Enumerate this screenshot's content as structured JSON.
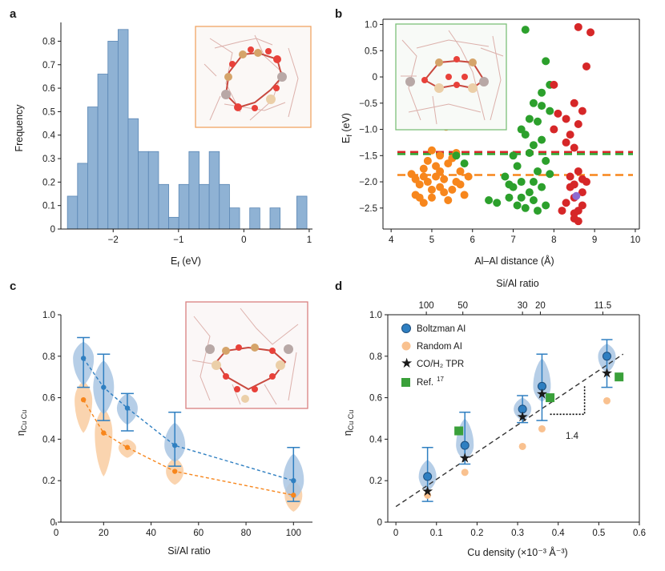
{
  "chart_data": [
    {
      "panel": "a",
      "type": "histogram",
      "xlabel": "E_f (eV)",
      "ylabel": "Frequency",
      "xlim": [
        -2.8,
        1.05
      ],
      "ylim": [
        0,
        0.88
      ],
      "xticks": [
        -2,
        -1,
        0,
        1
      ],
      "xtick_labels": [
        "−2",
        "−1",
        "0",
        "1"
      ],
      "yticks": [
        0,
        0.1,
        0.2,
        0.3,
        0.4,
        0.5,
        0.6,
        0.7,
        0.8
      ],
      "ytick_labels": [
        "0",
        "0.1",
        "0.2",
        "0.3",
        "0.4",
        "0.5",
        "0.6",
        "0.7",
        "0.8"
      ],
      "bin_width": 0.155,
      "bins": [
        {
          "x0": -2.7,
          "value": 0.14
        },
        {
          "x0": -2.545,
          "value": 0.28
        },
        {
          "x0": -2.39,
          "value": 0.52
        },
        {
          "x0": -2.235,
          "value": 0.66
        },
        {
          "x0": -2.08,
          "value": 0.8
        },
        {
          "x0": -1.925,
          "value": 0.85
        },
        {
          "x0": -1.77,
          "value": 0.47
        },
        {
          "x0": -1.615,
          "value": 0.33
        },
        {
          "x0": -1.46,
          "value": 0.33
        },
        {
          "x0": -1.305,
          "value": 0.19
        },
        {
          "x0": -1.15,
          "value": 0.05
        },
        {
          "x0": -0.995,
          "value": 0.19
        },
        {
          "x0": -0.84,
          "value": 0.33
        },
        {
          "x0": -0.685,
          "value": 0.19
        },
        {
          "x0": -0.53,
          "value": 0.33
        },
        {
          "x0": -0.375,
          "value": 0.19
        },
        {
          "x0": -0.22,
          "value": 0.09
        },
        {
          "x0": 0.09,
          "value": 0.09
        },
        {
          "x0": 0.4,
          "value": 0.09
        },
        {
          "x0": 0.81,
          "value": 0.14
        }
      ],
      "bar_color": "#8fb2d4"
    },
    {
      "panel": "b",
      "type": "scatter",
      "xlabel": "Al–Al distance (Å)",
      "ylabel": "E_f (eV)",
      "xlim": [
        3.8,
        10.1
      ],
      "ylim": [
        -2.9,
        1.1
      ],
      "xticks": [
        4,
        5,
        6,
        7,
        8,
        9,
        10
      ],
      "xtick_labels": [
        "4",
        "5",
        "6",
        "7",
        "8",
        "9",
        "10"
      ],
      "yticks": [
        -2.5,
        -2.0,
        -1.5,
        -1.0,
        -0.5,
        0,
        0.5,
        1.0
      ],
      "ytick_labels": [
        "−2.5",
        "−2.0",
        "−1.5",
        "−1.0",
        "−0.5",
        "0",
        "0.5",
        "1.0"
      ],
      "series": [
        {
          "name": "orange",
          "color": "#f7861c",
          "mean_line": -1.87,
          "points": [
            [
              4.5,
              -1.85
            ],
            [
              4.6,
              -1.95
            ],
            [
              4.7,
              -2.05
            ],
            [
              4.8,
              -1.75
            ],
            [
              4.9,
              -1.6
            ],
            [
              5.0,
              -1.4
            ],
            [
              5.0,
              -2.3
            ],
            [
              5.1,
              -1.9
            ],
            [
              5.2,
              -2.1
            ],
            [
              5.2,
              -1.5
            ],
            [
              5.3,
              -2.2
            ],
            [
              5.4,
              -1.65
            ],
            [
              5.5,
              -1.55
            ],
            [
              5.6,
              -2.0
            ],
            [
              5.7,
              -1.8
            ],
            [
              5.8,
              -2.25
            ],
            [
              4.6,
              -2.25
            ],
            [
              4.8,
              -2.4
            ],
            [
              5.0,
              -2.15
            ],
            [
              5.3,
              -1.95
            ],
            [
              5.6,
              -1.45
            ],
            [
              5.4,
              -2.35
            ],
            [
              5.1,
              -1.7
            ],
            [
              4.9,
              -2.0
            ],
            [
              4.7,
              -2.3
            ],
            [
              5.5,
              -2.15
            ],
            [
              5.7,
              -2.05
            ],
            [
              5.2,
              -1.8
            ],
            [
              4.8,
              -1.9
            ],
            [
              5.9,
              -1.9
            ],
            [
              5.35,
              -0.95
            ]
          ]
        },
        {
          "name": "green",
          "color": "#2ca02c",
          "mean_line": -1.47,
          "points": [
            [
              7.3,
              0.9
            ],
            [
              7.8,
              0.3
            ],
            [
              7.9,
              -0.15
            ],
            [
              7.5,
              -0.5
            ],
            [
              7.7,
              -0.55
            ],
            [
              7.9,
              -0.65
            ],
            [
              7.4,
              -0.8
            ],
            [
              7.6,
              -0.85
            ],
            [
              7.2,
              -1.0
            ],
            [
              7.3,
              -1.1
            ],
            [
              7.7,
              -1.2
            ],
            [
              7.5,
              -1.3
            ],
            [
              7.0,
              -1.5
            ],
            [
              7.8,
              -1.6
            ],
            [
              7.1,
              -1.7
            ],
            [
              7.6,
              -1.8
            ],
            [
              7.9,
              -1.85
            ],
            [
              6.8,
              -1.9
            ],
            [
              7.2,
              -2.0
            ],
            [
              7.0,
              -2.1
            ],
            [
              7.4,
              -2.2
            ],
            [
              6.9,
              -2.3
            ],
            [
              7.5,
              -2.35
            ],
            [
              7.1,
              -2.45
            ],
            [
              7.3,
              -2.5
            ],
            [
              7.6,
              -2.55
            ],
            [
              7.8,
              -2.45
            ],
            [
              6.6,
              -2.4
            ],
            [
              7.2,
              -2.3
            ],
            [
              7.7,
              -2.1
            ],
            [
              6.4,
              -2.35
            ],
            [
              7.4,
              -1.45
            ],
            [
              6.9,
              -2.05
            ],
            [
              7.5,
              -2.0
            ],
            [
              5.8,
              -1.65
            ],
            [
              5.6,
              -1.5
            ],
            [
              7.7,
              -0.3
            ]
          ]
        },
        {
          "name": "red",
          "color": "#d62728",
          "mean_line": -1.43,
          "points": [
            [
              8.6,
              0.95
            ],
            [
              8.9,
              0.85
            ],
            [
              8.8,
              0.2
            ],
            [
              8.0,
              -0.15
            ],
            [
              8.5,
              -0.5
            ],
            [
              8.1,
              -0.7
            ],
            [
              8.3,
              -0.8
            ],
            [
              8.6,
              -0.9
            ],
            [
              8.0,
              -1.0
            ],
            [
              8.4,
              -1.1
            ],
            [
              8.7,
              -0.65
            ],
            [
              8.3,
              -1.25
            ],
            [
              8.5,
              -1.35
            ],
            [
              8.6,
              -1.8
            ],
            [
              8.7,
              -1.95
            ],
            [
              8.4,
              -2.1
            ],
            [
              8.5,
              -2.3
            ],
            [
              8.3,
              -2.4
            ],
            [
              8.6,
              -2.55
            ],
            [
              8.5,
              -2.6
            ],
            [
              8.7,
              -2.2
            ],
            [
              8.8,
              -2.0
            ],
            [
              8.4,
              -1.9
            ],
            [
              8.5,
              -2.7
            ],
            [
              8.2,
              -2.55
            ],
            [
              8.6,
              -2.75
            ],
            [
              8.5,
              -2.05
            ],
            [
              8.7,
              -2.45
            ]
          ]
        },
        {
          "name": "purple",
          "color": "#8e6bd0",
          "mean_line": null,
          "points": [
            [
              8.55,
              -2.27
            ]
          ]
        }
      ]
    },
    {
      "panel": "c",
      "type": "violin",
      "xlabel": "Si/Al ratio",
      "ylabel": "η_Cu Cu",
      "xlim": [
        2,
        108
      ],
      "ylim": [
        0,
        1.0
      ],
      "xticks": [
        0,
        20,
        40,
        60,
        80,
        100
      ],
      "xtick_labels": [
        "0",
        "20",
        "40",
        "60",
        "80",
        "100"
      ],
      "yticks": [
        0,
        0.2,
        0.4,
        0.6,
        0.8,
        1.0
      ],
      "ytick_labels": [
        "0",
        "0.2",
        "0.4",
        "0.6",
        "0.8",
        "1.0"
      ],
      "series": [
        {
          "name": "Boltzman Al",
          "color": "#2f7fc1",
          "x": [
            11.5,
            20,
            30,
            50,
            100
          ],
          "y": [
            0.79,
            0.65,
            0.55,
            0.37,
            0.2
          ],
          "err_low": [
            0.65,
            0.49,
            0.44,
            0.27,
            0.1
          ],
          "err_high": [
            0.89,
            0.81,
            0.62,
            0.53,
            0.36
          ]
        },
        {
          "name": "Random Al",
          "color": "#f7861c",
          "x": [
            11.5,
            20,
            30,
            50,
            100
          ],
          "y": [
            0.59,
            0.43,
            0.36,
            0.245,
            0.13
          ]
        }
      ]
    },
    {
      "panel": "d",
      "type": "scatter",
      "xlabel": "Cu density (×10⁻³ Å⁻³)",
      "ylabel": "η_Cu Cu",
      "top_xlabel": "Si/Al ratio",
      "top_xticks": [
        0.075,
        0.165,
        0.312,
        0.356,
        0.51
      ],
      "top_xtick_labels": [
        "100",
        "50",
        "30",
        "20",
        "11.5"
      ],
      "xlim": [
        -0.02,
        0.6
      ],
      "ylim": [
        0,
        1.0
      ],
      "xticks": [
        0,
        0.1,
        0.2,
        0.3,
        0.4,
        0.5,
        0.6
      ],
      "xtick_labels": [
        "0",
        "0.1",
        "0.2",
        "0.3",
        "0.4",
        "0.5",
        "0.6"
      ],
      "yticks": [
        0,
        0.2,
        0.4,
        0.6,
        0.8,
        1.0
      ],
      "ytick_labels": [
        "0",
        "0.2",
        "0.4",
        "0.6",
        "0.8",
        "1.0"
      ],
      "fit_line": {
        "x": [
          0,
          0.56
        ],
        "y": [
          0.075,
          0.81
        ]
      },
      "slope_annotation": "1.4",
      "series": [
        {
          "name": "Boltzman AI",
          "color": "#2f7fc1",
          "x": [
            0.078,
            0.17,
            0.312,
            0.36,
            0.52
          ],
          "y": [
            0.22,
            0.37,
            0.545,
            0.655,
            0.8
          ],
          "err_low": [
            0.1,
            0.28,
            0.48,
            0.49,
            0.65
          ],
          "err_high": [
            0.36,
            0.53,
            0.61,
            0.81,
            0.88
          ]
        },
        {
          "name": "Random AI",
          "color": "#f9c18f",
          "x": [
            0.078,
            0.17,
            0.312,
            0.36,
            0.52
          ],
          "y": [
            0.13,
            0.24,
            0.365,
            0.45,
            0.585
          ]
        },
        {
          "name": "CO/H₂ TPR",
          "color": "#000000",
          "x": [
            0.078,
            0.17,
            0.312,
            0.36,
            0.52
          ],
          "y": [
            0.15,
            0.31,
            0.51,
            0.62,
            0.72
          ]
        },
        {
          "name": "Ref.",
          "color": "#3aa03a",
          "x": [
            0.155,
            0.38,
            0.55
          ],
          "y": [
            0.44,
            0.6,
            0.7
          ]
        }
      ],
      "legend": [
        "Boltzman AI",
        "Random AI",
        "CO/H₂ TPR",
        "Ref."
      ],
      "ref_superscript": "17"
    }
  ],
  "labels": {
    "panel_a": "a",
    "panel_b": "b",
    "panel_c": "c",
    "panel_d": "d",
    "a_xlabel_main": "E",
    "a_xlabel_sub": "f",
    "a_xlabel_rest": " (eV)",
    "a_ylabel": "Frequency",
    "b_xlabel": "Al–Al distance (Å)",
    "b_ylabel_main": "E",
    "b_ylabel_sub": "f",
    "b_ylabel_rest": " (eV)",
    "c_xlabel": "Si/Al ratio",
    "c_ylabel_main": "η",
    "c_ylabel_sub": "Cu Cu",
    "d_xlabel": "Cu density (×10⁻³ Å⁻³)",
    "d_top_label": "Si/Al ratio",
    "d_ylabel_main": "η",
    "d_ylabel_sub": "Cu Cu",
    "d_slope": "1.4",
    "d_legend_1": "Boltzman AI",
    "d_legend_2": "Random AI",
    "d_legend_3": "CO/H₂ TPR",
    "d_legend_4": "Ref.",
    "d_legend_4_sup": "17"
  },
  "colors": {
    "axis": "#1a1a1a",
    "hist_bar": "#8fb2d4",
    "hist_edge": "#5b87b5",
    "inset_a": "#f0a464",
    "inset_b": "#7cc07a",
    "inset_c": "#d98080",
    "violin_blue": "#a9c6e3",
    "violin_orange": "#f9cfa6"
  }
}
